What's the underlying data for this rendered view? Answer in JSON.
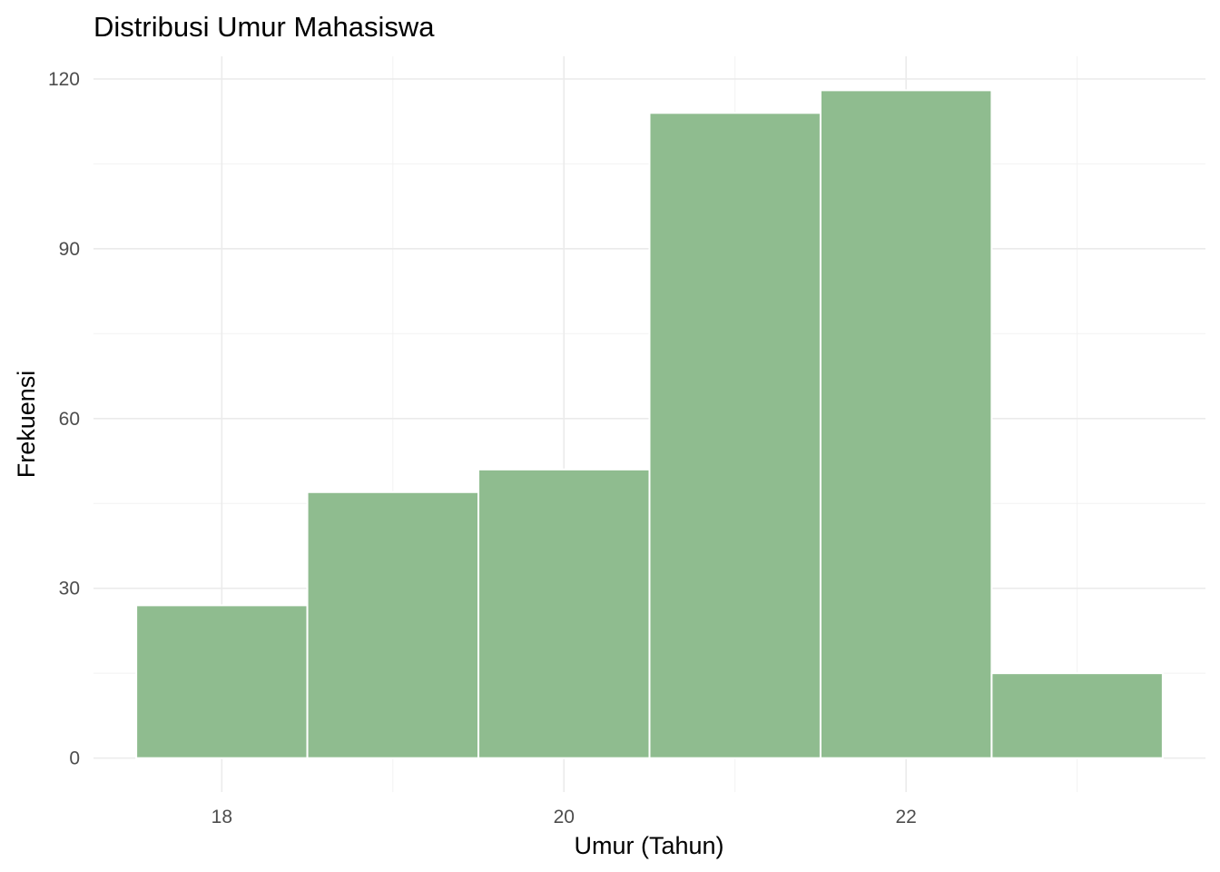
{
  "chart_data": {
    "type": "bar",
    "title": "Distribusi Umur Mahasiswa",
    "xlabel": "Umur (Tahun)",
    "ylabel": "Frekuensi",
    "bin_width": 1,
    "bins": [
      {
        "x": 18,
        "count": 27
      },
      {
        "x": 19,
        "count": 47
      },
      {
        "x": 20,
        "count": 51
      },
      {
        "x": 21,
        "count": 114
      },
      {
        "x": 22,
        "count": 118
      },
      {
        "x": 23,
        "count": 15
      }
    ],
    "xlim": [
      17.25,
      23.75
    ],
    "ylim": [
      -6,
      124
    ],
    "x_ticks": [
      18,
      20,
      22
    ],
    "x_minor_ticks": [
      19,
      21,
      23
    ],
    "y_ticks": [
      0,
      30,
      60,
      90,
      120
    ],
    "y_minor_ticks": [
      15,
      45,
      75,
      105
    ],
    "bar_color": "#8fbc8f",
    "bar_border_color": "#ffffff",
    "grid": true,
    "legend": "none"
  }
}
